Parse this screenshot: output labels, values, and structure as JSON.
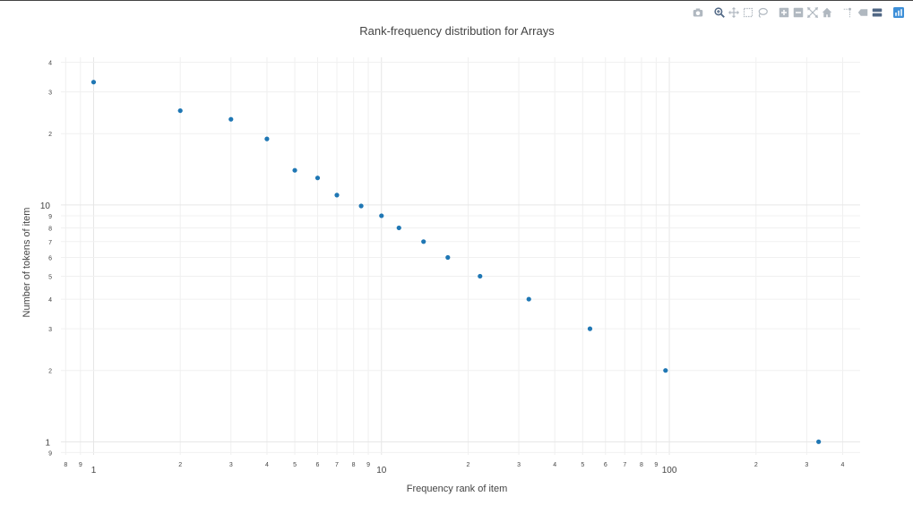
{
  "modebar": {
    "buttons": [
      {
        "name": "camera-icon",
        "color": "#b0b8c0"
      },
      {
        "name": "zoom-icon",
        "color": "#506784"
      },
      {
        "name": "pan-icon",
        "color": "#b0b8c0"
      },
      {
        "name": "box-select-icon",
        "color": "#b0b8c0"
      },
      {
        "name": "lasso-select-icon",
        "color": "#b0b8c0"
      },
      {
        "name": "zoom-in-icon",
        "color": "#b0b8c0"
      },
      {
        "name": "zoom-out-icon",
        "color": "#b0b8c0"
      },
      {
        "name": "autoscale-icon",
        "color": "#b0b8c0"
      },
      {
        "name": "reset-axes-icon",
        "color": "#b0b8c0"
      },
      {
        "name": "spike-lines-icon",
        "color": "#b0b8c0"
      },
      {
        "name": "hover-closest-icon",
        "color": "#b0b8c0"
      },
      {
        "name": "hover-compare-icon",
        "color": "#506784"
      },
      {
        "name": "plotly-logo-icon",
        "color": "#3d8fd8"
      }
    ]
  },
  "chart_data": {
    "type": "scatter",
    "title": "Rank-frequency distribution for Arrays",
    "xlabel": "Frequency rank of item",
    "ylabel": "Number of tokens of item",
    "xscale": "log",
    "yscale": "log",
    "xlim": [
      0.77,
      460
    ],
    "ylim": [
      0.88,
      42
    ],
    "grid": true,
    "marker_color": "#1f77b4",
    "x": [
      1,
      2,
      3,
      4,
      5,
      6,
      7,
      8.5,
      10,
      11.5,
      14,
      17,
      22,
      32.5,
      53,
      97,
      330
    ],
    "y": [
      33,
      25,
      23,
      19,
      14,
      13,
      11,
      9.9,
      9,
      8,
      7,
      6,
      5,
      4,
      3,
      2,
      1
    ],
    "x_major_ticks": [
      {
        "value": 1,
        "label": "1"
      },
      {
        "value": 10,
        "label": "10"
      },
      {
        "value": 100,
        "label": "100"
      }
    ],
    "x_minor_ticks": [
      {
        "value": 0.8,
        "label": "8"
      },
      {
        "value": 0.9,
        "label": "9"
      },
      {
        "value": 2,
        "label": "2"
      },
      {
        "value": 3,
        "label": "3"
      },
      {
        "value": 4,
        "label": "4"
      },
      {
        "value": 5,
        "label": "5"
      },
      {
        "value": 6,
        "label": "6"
      },
      {
        "value": 7,
        "label": "7"
      },
      {
        "value": 8,
        "label": "8"
      },
      {
        "value": 9,
        "label": "9"
      },
      {
        "value": 20,
        "label": "2"
      },
      {
        "value": 30,
        "label": "3"
      },
      {
        "value": 40,
        "label": "4"
      },
      {
        "value": 50,
        "label": "5"
      },
      {
        "value": 60,
        "label": "6"
      },
      {
        "value": 70,
        "label": "7"
      },
      {
        "value": 80,
        "label": "8"
      },
      {
        "value": 90,
        "label": "9"
      },
      {
        "value": 200,
        "label": "2"
      },
      {
        "value": 300,
        "label": "3"
      },
      {
        "value": 400,
        "label": "4"
      }
    ],
    "y_major_ticks": [
      {
        "value": 1,
        "label": "1"
      },
      {
        "value": 10,
        "label": "10"
      }
    ],
    "y_minor_ticks": [
      {
        "value": 0.9,
        "label": "9"
      },
      {
        "value": 2,
        "label": "2"
      },
      {
        "value": 3,
        "label": "3"
      },
      {
        "value": 4,
        "label": "4"
      },
      {
        "value": 5,
        "label": "5"
      },
      {
        "value": 6,
        "label": "6"
      },
      {
        "value": 7,
        "label": "7"
      },
      {
        "value": 8,
        "label": "8"
      },
      {
        "value": 9,
        "label": "9"
      },
      {
        "value": 20,
        "label": "2"
      },
      {
        "value": 30,
        "label": "3"
      },
      {
        "value": 40,
        "label": "4"
      }
    ]
  }
}
